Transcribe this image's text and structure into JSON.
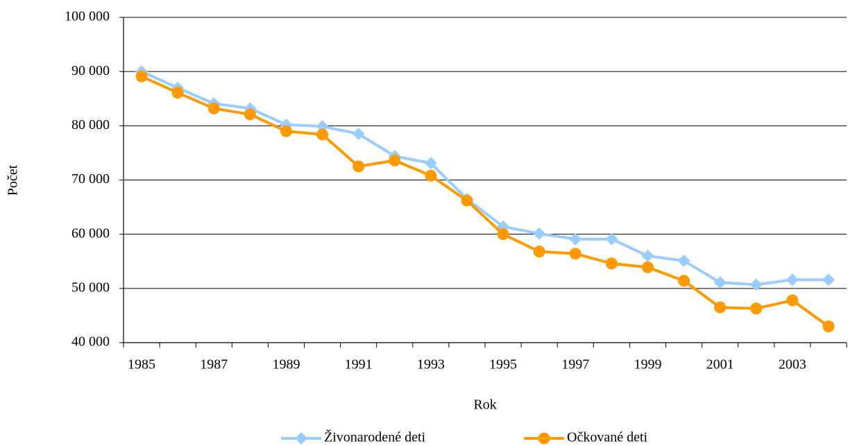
{
  "chart_data": {
    "type": "line",
    "x_label": "Rok",
    "y_label": "Počet",
    "categories": [
      "1985",
      null,
      "1987",
      null,
      "1989",
      null,
      "1991",
      null,
      "1993",
      null,
      "1995",
      null,
      "1997",
      null,
      "1999",
      null,
      "2001",
      null,
      "2003",
      null
    ],
    "series": [
      {
        "name": "Živonarodené deti",
        "color": "#99ccff",
        "marker": "diamond",
        "values": [
          90000,
          87000,
          84100,
          83200,
          80200,
          79900,
          78500,
          74400,
          73100,
          66500,
          61400,
          60100,
          59100,
          59100,
          56000,
          55100,
          51100,
          50700,
          51600,
          51600
        ]
      },
      {
        "name": "Očkované deti",
        "color": "#ff9900",
        "marker": "circle",
        "values": [
          89100,
          86100,
          83200,
          82100,
          79000,
          78400,
          72500,
          73600,
          70800,
          66200,
          60000,
          56800,
          56400,
          54600,
          53900,
          51400,
          46500,
          46300,
          47800,
          43000
        ]
      }
    ],
    "ylim": [
      40000,
      100000
    ],
    "yticks": [
      {
        "value": 40000,
        "label": "40 000"
      },
      {
        "value": 50000,
        "label": "50 000"
      },
      {
        "value": 60000,
        "label": "60 000"
      },
      {
        "value": 70000,
        "label": "70 000"
      },
      {
        "value": 80000,
        "label": "80 000"
      },
      {
        "value": 90000,
        "label": "90 000"
      },
      {
        "value": 100000,
        "label": "100 000"
      }
    ],
    "grid": true,
    "legend": "bottom"
  }
}
